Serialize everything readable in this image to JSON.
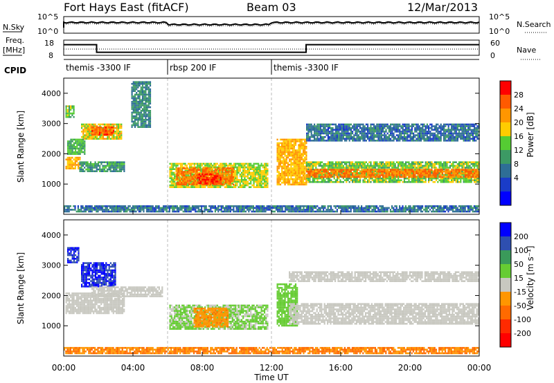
{
  "header": {
    "station": "Fort Hays East (fitACF)",
    "beam": "Beam 03",
    "date": "12/Mar/2013"
  },
  "noise_panel": {
    "left_label": "N.Sky",
    "right_label": "N.Search",
    "left_ticks": [
      "10^5",
      "10^0"
    ],
    "right_ticks": [
      "10^5",
      "10^0"
    ]
  },
  "freq_panel": {
    "left_label_1": "Freq.",
    "left_label_2": "[MHz]",
    "right_label": "Nave",
    "left_ticks": [
      "18",
      "8"
    ],
    "right_ticks": [
      "60",
      "0"
    ]
  },
  "cpid": {
    "label": "CPID",
    "segments": [
      {
        "name": "themis -3300 IF",
        "start_hour": 0,
        "end_hour": 6
      },
      {
        "name": "rbsp 200 IF",
        "start_hour": 6,
        "end_hour": 12
      },
      {
        "name": "themis -3300 IF",
        "start_hour": 12,
        "end_hour": 24
      }
    ]
  },
  "power_panel": {
    "ylabel": "Slant Range [km]",
    "yticks": [
      "4000",
      "3000",
      "2000",
      "1000"
    ],
    "colorbar_label": "Power [dB]",
    "colorbar_ticks": [
      "28",
      "24",
      "20",
      "16",
      "12",
      "8",
      "4"
    ],
    "colorbar_colors": [
      "#ff0000",
      "#ff5a00",
      "#ff9600",
      "#ffcc00",
      "#55cc33",
      "#3c9a64",
      "#2e6e96",
      "#1a3cc8",
      "#0000ff"
    ]
  },
  "velocity_panel": {
    "ylabel": "Slant Range [km]",
    "yticks": [
      "4000",
      "3000",
      "2000",
      "1000"
    ],
    "colorbar_label": "Velocity [m s⁻¹]",
    "colorbar_ticks": [
      "200",
      "100",
      "50",
      "15",
      "-15",
      "-50",
      "-100",
      "-200"
    ],
    "colorbar_colors": [
      "#0000ff",
      "#2e4fb0",
      "#3a9a5a",
      "#66cc33",
      "#c8c8c0",
      "#ff9600",
      "#ff6a00",
      "#ff2a00",
      "#ff0000"
    ]
  },
  "xaxis": {
    "label": "Time UT",
    "ticks": [
      "00:00",
      "04:00",
      "08:00",
      "12:00",
      "16:00",
      "20:00",
      "00:00"
    ]
  },
  "chart_data": {
    "type": "heatmap",
    "title": "Fort Hays East (fitACF)",
    "subtitle": "Beam 03",
    "date": "12/Mar/2013",
    "xlabel": "Time UT",
    "ylabel": "Slant Range [km]",
    "x_range_hours": [
      0,
      24
    ],
    "y_range_km": [
      0,
      4500
    ],
    "frequency_mhz": [
      {
        "start_hour": 0,
        "end_hour": 1.9,
        "value": 15
      },
      {
        "start_hour": 1.9,
        "end_hour": 14,
        "value": 10
      },
      {
        "start_hour": 14,
        "end_hour": 24,
        "value": 15
      }
    ],
    "power_regions": [
      {
        "t0": 0.1,
        "t1": 0.9,
        "r0": 1500,
        "r1": 1900,
        "db": 20
      },
      {
        "t0": 0.9,
        "t1": 3.5,
        "r0": 1400,
        "r1": 1750,
        "db": 10
      },
      {
        "t0": 1.0,
        "t1": 3.3,
        "r0": 2500,
        "r1": 3000,
        "db": 18
      },
      {
        "t0": 1.6,
        "t1": 2.9,
        "r0": 2650,
        "r1": 2900,
        "db": 26
      },
      {
        "t0": 0.2,
        "t1": 1.2,
        "r0": 2000,
        "r1": 2500,
        "db": 12
      },
      {
        "t0": 0.1,
        "t1": 0.6,
        "r0": 3200,
        "r1": 3600,
        "db": 14
      },
      {
        "t0": 3.9,
        "t1": 5.0,
        "r0": 2900,
        "r1": 4400,
        "db": 8
      },
      {
        "t0": 6.1,
        "t1": 11.8,
        "r0": 900,
        "r1": 1700,
        "db": 16
      },
      {
        "t0": 6.5,
        "t1": 9.8,
        "r0": 1000,
        "r1": 1550,
        "db": 24
      },
      {
        "t0": 7.7,
        "t1": 9.1,
        "r0": 1000,
        "r1": 1350,
        "db": 28
      },
      {
        "t0": 12.3,
        "t1": 14.0,
        "r0": 1000,
        "r1": 2500,
        "db": 20
      },
      {
        "t0": 14.0,
        "t1": 24.0,
        "r0": 1050,
        "r1": 1750,
        "db": 14
      },
      {
        "t0": 14.0,
        "t1": 24.0,
        "r0": 1250,
        "r1": 1500,
        "db": 24
      },
      {
        "t0": 14.0,
        "t1": 24.0,
        "r0": 2450,
        "r1": 3000,
        "db": 6
      },
      {
        "t0": 0.0,
        "t1": 24.0,
        "r0": 100,
        "r1": 300,
        "db": 6
      }
    ],
    "velocity_regions": [
      {
        "t0": 0.1,
        "t1": 3.5,
        "r0": 1400,
        "r1": 2100,
        "v": 0
      },
      {
        "t0": 1.0,
        "t1": 3.0,
        "r0": 2300,
        "r1": 3100,
        "v": 200
      },
      {
        "t0": 0.2,
        "t1": 0.9,
        "r0": 3100,
        "r1": 3600,
        "v": 200
      },
      {
        "t0": 1.6,
        "t1": 5.7,
        "r0": 2000,
        "r1": 2300,
        "v": 0
      },
      {
        "t0": 6.1,
        "t1": 11.8,
        "r0": 900,
        "r1": 1700,
        "v": 20
      },
      {
        "t0": 7.5,
        "t1": 9.5,
        "r0": 1000,
        "r1": 1600,
        "v": -40
      },
      {
        "t0": 12.3,
        "t1": 13.5,
        "r0": 1000,
        "r1": 2400,
        "v": 30
      },
      {
        "t0": 13.0,
        "t1": 24.0,
        "r0": 1050,
        "r1": 1750,
        "v": 0
      },
      {
        "t0": 13.0,
        "t1": 24.0,
        "r0": 2450,
        "r1": 2800,
        "v": 0
      },
      {
        "t0": 0.0,
        "t1": 24.0,
        "r0": 100,
        "r1": 300,
        "v": -50
      }
    ]
  }
}
